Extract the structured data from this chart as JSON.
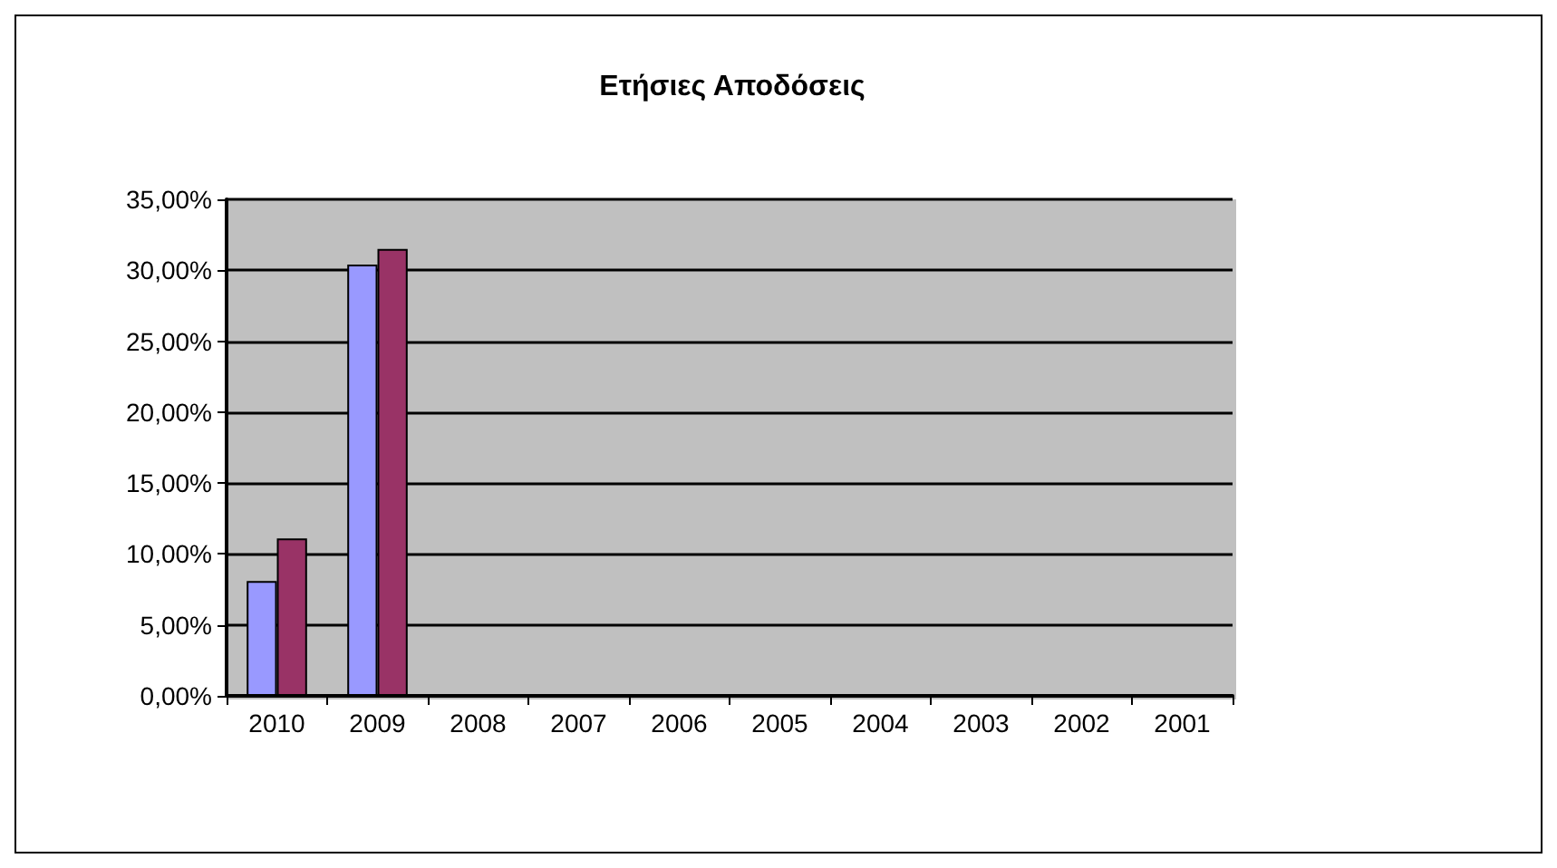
{
  "chart_data": {
    "type": "bar",
    "title": "Ετήσιες Αποδόσεις",
    "categories": [
      "2010",
      "2009",
      "2008",
      "2007",
      "2006",
      "2005",
      "2004",
      "2003",
      "2002",
      "2001"
    ],
    "series": [
      {
        "color": "#9999ff",
        "values": [
          8.1,
          30.4,
          null,
          null,
          null,
          null,
          null,
          null,
          null,
          null
        ]
      },
      {
        "color": "#993366",
        "values": [
          11.1,
          31.5,
          null,
          null,
          null,
          null,
          null,
          null,
          null,
          null
        ]
      }
    ],
    "ylim": [
      0,
      35
    ],
    "yticks": [
      {
        "value": 0,
        "label": "0,00%"
      },
      {
        "value": 5,
        "label": "5,00%"
      },
      {
        "value": 10,
        "label": "10,00%"
      },
      {
        "value": 15,
        "label": "15,00%"
      },
      {
        "value": 20,
        "label": "20,00%"
      },
      {
        "value": 25,
        "label": "25,00%"
      },
      {
        "value": 30,
        "label": "30,00%"
      },
      {
        "value": 35,
        "label": "35,00%"
      }
    ],
    "grid": "y"
  }
}
